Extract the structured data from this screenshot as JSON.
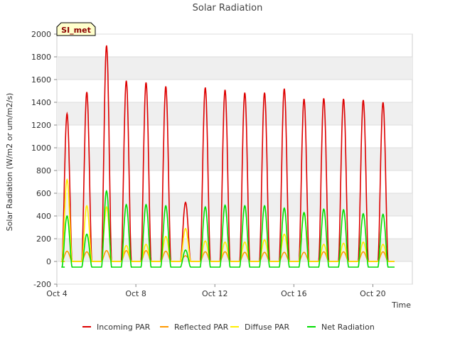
{
  "chart_data": {
    "type": "line",
    "title": "Solar Radiation",
    "xlabel": "Time",
    "ylabel": "Solar Radiation (W/m2 or um/m2/s)",
    "site_label": "SI_met",
    "xlim": [
      4,
      22
    ],
    "ylim": [
      -200,
      2000
    ],
    "yticks": [
      -200,
      0,
      200,
      400,
      600,
      800,
      1000,
      1200,
      1400,
      1600,
      1800,
      2000
    ],
    "xticks": [
      {
        "value": 4,
        "label": "Oct 4"
      },
      {
        "value": 8,
        "label": "Oct 8"
      },
      {
        "value": 12,
        "label": "Oct 12"
      },
      {
        "value": 16,
        "label": "Oct 16"
      },
      {
        "value": 20,
        "label": "Oct 20"
      }
    ],
    "days": [
      4,
      5,
      6,
      7,
      8,
      9,
      10,
      11,
      12,
      13,
      14,
      15,
      16,
      17,
      18,
      19,
      20
    ],
    "series": [
      {
        "name": "Incoming PAR",
        "color": "#dd0000",
        "daily_peaks": [
          1300,
          1490,
          1900,
          1590,
          1575,
          1540,
          520,
          1530,
          1510,
          1485,
          1485,
          1520,
          1430,
          1435,
          1430,
          1420,
          1400
        ],
        "night_value": 0
      },
      {
        "name": "Reflected PAR",
        "color": "#ff9900",
        "daily_peaks": [
          90,
          85,
          95,
          95,
          95,
          90,
          50,
          85,
          85,
          80,
          80,
          80,
          80,
          85,
          85,
          85,
          85
        ],
        "night_value": 0
      },
      {
        "name": "Diffuse PAR",
        "color": "#ffee00",
        "daily_peaks": [
          720,
          490,
          480,
          140,
          150,
          220,
          290,
          180,
          170,
          170,
          190,
          240,
          430,
          150,
          160,
          170,
          150
        ],
        "night_value": 0
      },
      {
        "name": "Net Radiation",
        "color": "#00dd00",
        "daily_peaks": [
          400,
          240,
          620,
          500,
          500,
          490,
          100,
          480,
          495,
          490,
          490,
          470,
          430,
          460,
          455,
          420,
          415
        ],
        "night_value": -50
      }
    ]
  }
}
